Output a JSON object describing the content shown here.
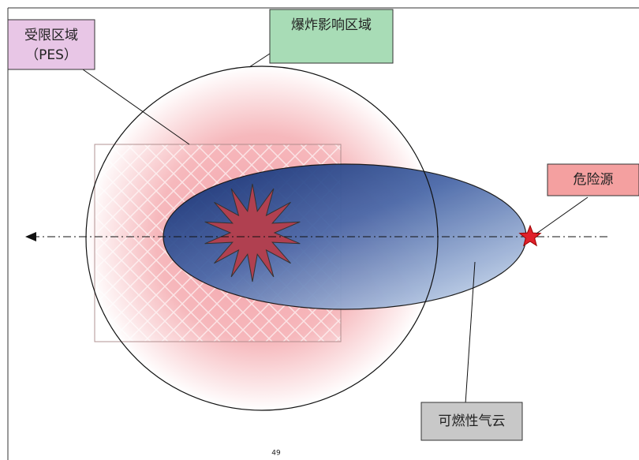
{
  "labels": {
    "pes": {
      "line1": "受限区域",
      "line2": "（PES）"
    },
    "impact": "爆炸影响区域",
    "source": "危险源",
    "cloud": "可燃性气云"
  },
  "page_number": "49"
}
